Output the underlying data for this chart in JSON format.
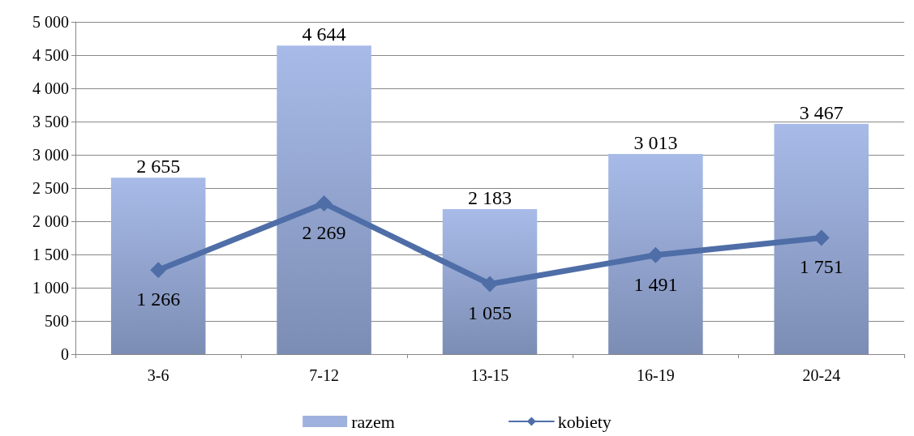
{
  "chart_data": {
    "type": "bar",
    "categories": [
      "3-6",
      "7-12",
      "13-15",
      "16-19",
      "20-24"
    ],
    "series": [
      {
        "name": "razem",
        "color": "#9fb2de",
        "values": [
          2655,
          4644,
          2183,
          3013,
          3467
        ],
        "value_labels": [
          "2 655",
          "4 644",
          "2 183",
          "3 013",
          "3 467"
        ]
      },
      {
        "name": "kobiety",
        "type": "line",
        "color": "#4f6ea8",
        "values": [
          1266,
          2269,
          1055,
          1491,
          1751
        ],
        "value_labels": [
          "1 266",
          "2 269",
          "1 055",
          "1 491",
          "1 751"
        ]
      }
    ],
    "ylim": [
      0,
      5000
    ],
    "yticks": [
      0,
      {
        "value": 500,
        "label": "500"
      },
      {
        "value": 1000,
        "label": "1 000"
      },
      {
        "value": 1500,
        "label": "1 500"
      },
      {
        "value": 2000,
        "label": "2 000"
      },
      {
        "value": 2500,
        "label": "2 500"
      },
      {
        "value": 3000,
        "label": "3 000"
      },
      {
        "value": 3500,
        "label": "3 500"
      },
      {
        "value": 4000,
        "label": "4 000"
      },
      {
        "value": 4500,
        "label": "4 500"
      },
      {
        "value": 5000,
        "label": "5 000"
      }
    ],
    "grid": "y",
    "legend": "bottom",
    "marker": "diamond",
    "line_style": "solid"
  }
}
